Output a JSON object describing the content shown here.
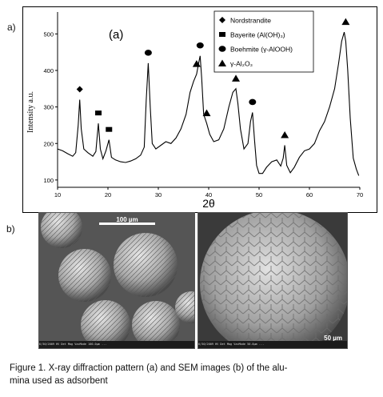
{
  "panel_a_label": "a)",
  "panel_b_label": "b)",
  "chart_data": {
    "type": "line",
    "inset_label": "(a)",
    "ylabel": "Intensity a.u.",
    "xlabel": "2θ",
    "xlim": [
      10,
      70
    ],
    "ylim": [
      80,
      560
    ],
    "xticks": [
      10,
      20,
      30,
      40,
      50,
      60,
      70
    ],
    "yticks": [
      100,
      200,
      300,
      400,
      500
    ],
    "series": [
      {
        "x": [
          10,
          11,
          12,
          13,
          13.6,
          14.1,
          14.4,
          14.7,
          15.2,
          16,
          17,
          17.6,
          18.1,
          18.5,
          19,
          19.6,
          20.2,
          20.7,
          21.5,
          22.5,
          23.5,
          24.5,
          25.5,
          26.5,
          27.2,
          27.6,
          28,
          28.4,
          28.8,
          29.5,
          30.5,
          31.5,
          32.5,
          33.5,
          34.5,
          35.5,
          36.3,
          37,
          37.6,
          38,
          38.3,
          38.6,
          39,
          39.6,
          40.2,
          41,
          42,
          43,
          44,
          44.8,
          45.4,
          45.8,
          46.3,
          47,
          47.8,
          48.3,
          48.7,
          49.1,
          49.5,
          50,
          50.7,
          51.5,
          52.5,
          53.5,
          54.3,
          54.8,
          55.1,
          55.5,
          56.2,
          57,
          58,
          59,
          60,
          61,
          62,
          63,
          64,
          65,
          65.8,
          66.4,
          66.9,
          67.2,
          67.6,
          68.1,
          68.7,
          69.3,
          69.8
        ],
        "y": [
          185,
          180,
          172,
          165,
          175,
          250,
          320,
          240,
          185,
          175,
          165,
          178,
          255,
          185,
          158,
          180,
          210,
          162,
          155,
          150,
          148,
          152,
          158,
          168,
          190,
          320,
          420,
          300,
          200,
          185,
          195,
          205,
          200,
          215,
          240,
          280,
          340,
          370,
          390,
          420,
          440,
          380,
          280,
          255,
          225,
          205,
          210,
          240,
          300,
          340,
          350,
          310,
          240,
          185,
          200,
          260,
          285,
          210,
          140,
          118,
          118,
          135,
          150,
          155,
          138,
          160,
          195,
          140,
          120,
          135,
          162,
          180,
          185,
          200,
          235,
          260,
          300,
          350,
          420,
          480,
          505,
          480,
          400,
          270,
          160,
          130,
          112
        ]
      }
    ],
    "legend": [
      {
        "marker": "diamond",
        "label": "Nordstrandite"
      },
      {
        "marker": "square",
        "label": "Bayerite (Al(OH)₃)"
      },
      {
        "marker": "circle",
        "label": "Boehmite (γ-AlOOH)"
      },
      {
        "marker": "triangle",
        "label": "γ-Al₂O₃"
      }
    ],
    "peak_markers": [
      {
        "x": 14.4,
        "y": 320,
        "marker": "diamond"
      },
      {
        "x": 18.1,
        "y": 255,
        "marker": "square"
      },
      {
        "x": 20.2,
        "y": 210,
        "marker": "square"
      },
      {
        "x": 28.0,
        "y": 420,
        "marker": "circle"
      },
      {
        "x": 37.6,
        "y": 390,
        "marker": "triangle"
      },
      {
        "x": 38.3,
        "y": 440,
        "marker": "circle"
      },
      {
        "x": 39.6,
        "y": 255,
        "marker": "triangle"
      },
      {
        "x": 45.4,
        "y": 350,
        "marker": "triangle"
      },
      {
        "x": 48.7,
        "y": 285,
        "marker": "circle"
      },
      {
        "x": 55.1,
        "y": 195,
        "marker": "triangle"
      },
      {
        "x": 67.2,
        "y": 505,
        "marker": "triangle"
      }
    ]
  },
  "sem_left": {
    "scale_label": "100 µm",
    "footer": "6/30/2009   HV   Det  Mag   VacMode                 100.0µm   ..."
  },
  "sem_right": {
    "scale_label": "50 µm",
    "footer": "6/30/2009   HV   Det  Mag   VacMode                 50.0µm   ..."
  },
  "caption": {
    "line1": "Figure  1. X-ray diffraction pattern (a) and SEM images (b) of the alu-",
    "line2": "mina used as adsorbent"
  }
}
